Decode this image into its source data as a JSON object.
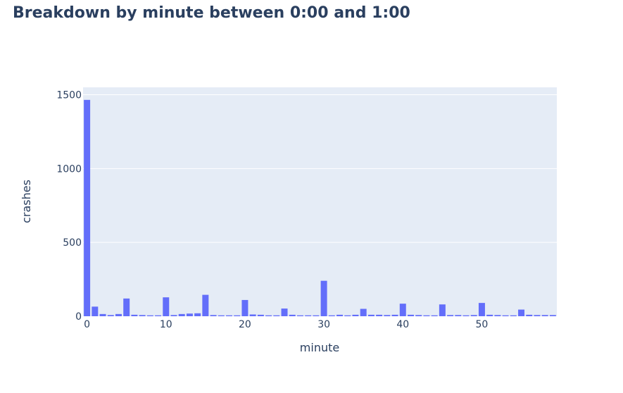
{
  "chart_data": {
    "type": "bar",
    "title": "Breakdown by minute between 0:00 and 1:00",
    "xlabel": "minute",
    "ylabel": "crashes",
    "ylim": [
      0,
      1550
    ],
    "xlim": [
      -0.5,
      59.5
    ],
    "grid": true,
    "legend": "none",
    "colors": {
      "bar": "#636efa",
      "plot_bg": "#e5ecf6",
      "grid": "#ffffff",
      "text": "#2a3f5f"
    },
    "x_ticks": [
      0,
      10,
      20,
      30,
      40,
      50
    ],
    "y_ticks": [
      0,
      500,
      1000,
      1500
    ],
    "x_tick_labels": [
      "0",
      "10",
      "20",
      "30",
      "40",
      "50"
    ],
    "y_tick_labels": [
      "0",
      "500",
      "1000",
      "1500"
    ],
    "x": [
      0,
      1,
      2,
      3,
      4,
      5,
      6,
      7,
      8,
      9,
      10,
      11,
      12,
      13,
      14,
      15,
      16,
      17,
      18,
      19,
      20,
      21,
      22,
      23,
      24,
      25,
      26,
      27,
      28,
      29,
      30,
      31,
      32,
      33,
      34,
      35,
      36,
      37,
      38,
      39,
      40,
      41,
      42,
      43,
      44,
      45,
      46,
      47,
      48,
      49,
      50,
      51,
      52,
      53,
      54,
      55,
      56,
      57,
      58,
      59
    ],
    "values": [
      1465,
      65,
      15,
      8,
      15,
      120,
      10,
      8,
      6,
      6,
      128,
      8,
      15,
      18,
      20,
      145,
      8,
      6,
      6,
      6,
      110,
      12,
      10,
      6,
      6,
      52,
      10,
      6,
      6,
      6,
      240,
      6,
      10,
      6,
      10,
      50,
      10,
      10,
      8,
      10,
      85,
      10,
      8,
      6,
      6,
      80,
      8,
      8,
      6,
      8,
      90,
      10,
      8,
      6,
      6,
      45,
      10,
      8,
      8,
      8
    ]
  }
}
